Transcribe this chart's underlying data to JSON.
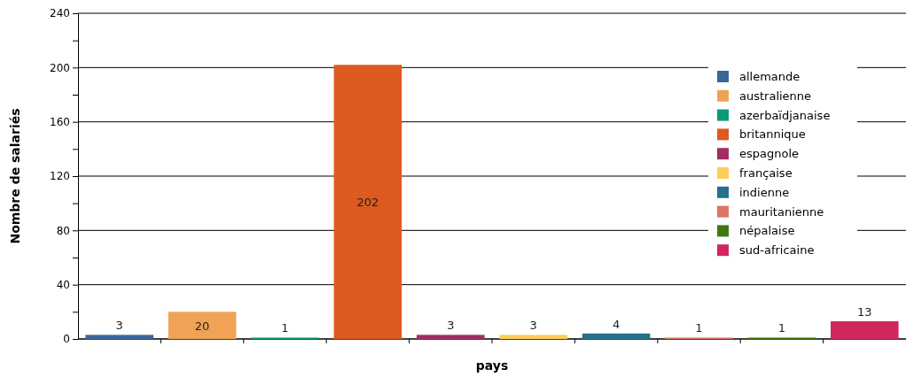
{
  "chart_data": {
    "type": "bar",
    "xlabel": "pays",
    "ylabel": "Nombre de salariés",
    "categories": [
      null,
      null,
      null,
      null,
      null,
      null,
      null,
      null,
      null,
      null
    ],
    "stacked": true,
    "series": [
      {
        "name": "allemande",
        "color": "#3c6699",
        "values": [
          3,
          null,
          null,
          null,
          null,
          null,
          null,
          null,
          null,
          null
        ]
      },
      {
        "name": "australienne",
        "color": "#f0a255",
        "values": [
          null,
          20,
          null,
          null,
          null,
          null,
          null,
          null,
          null,
          null
        ]
      },
      {
        "name": "azerbaïdjanaise",
        "color": "#0d9a78",
        "values": [
          null,
          null,
          1,
          null,
          null,
          null,
          null,
          null,
          null,
          null
        ]
      },
      {
        "name": "britannique",
        "color": "#de5a1f",
        "values": [
          null,
          null,
          null,
          202,
          null,
          null,
          null,
          null,
          null,
          null
        ]
      },
      {
        "name": "espagnole",
        "color": "#a32c64",
        "values": [
          null,
          null,
          null,
          null,
          3,
          null,
          null,
          null,
          null,
          null
        ]
      },
      {
        "name": "française",
        "color": "#fcce5a",
        "values": [
          null,
          null,
          null,
          null,
          null,
          3,
          null,
          null,
          null,
          null
        ]
      },
      {
        "name": "indienne",
        "color": "#23718a",
        "values": [
          null,
          null,
          null,
          null,
          null,
          null,
          4,
          null,
          null,
          null
        ]
      },
      {
        "name": "mauritanienne",
        "color": "#e07464",
        "values": [
          null,
          null,
          null,
          null,
          null,
          null,
          null,
          1,
          null,
          null
        ]
      },
      {
        "name": "népalaise",
        "color": "#3e7a12",
        "values": [
          null,
          null,
          null,
          null,
          null,
          null,
          null,
          null,
          1,
          null
        ]
      },
      {
        "name": "sud-africaine",
        "color": "#d2275c",
        "values": [
          null,
          null,
          null,
          null,
          null,
          null,
          null,
          null,
          null,
          13
        ]
      }
    ],
    "ylim": [
      0,
      240
    ],
    "yticks": [
      0,
      {
        "value": 20,
        "label": null
      },
      40,
      {
        "value": 60,
        "label": null
      },
      80,
      {
        "value": 100,
        "label": null
      },
      120,
      {
        "value": 140,
        "label": null
      },
      160,
      {
        "value": 180,
        "label": null
      },
      200,
      {
        "value": 220,
        "label": null
      },
      240
    ],
    "grid": "y",
    "legend": "top right",
    "data_labels": true
  }
}
